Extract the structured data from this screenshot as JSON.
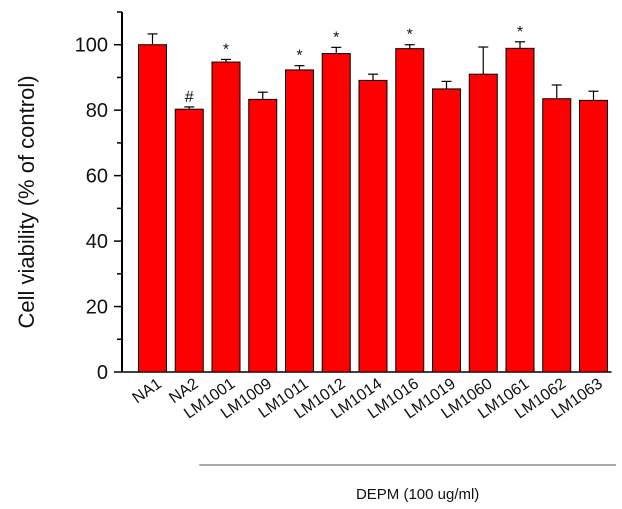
{
  "chart_data": {
    "type": "bar",
    "title": "",
    "ylabel": "Cell viability (% of control)",
    "xlabel": "DEPM (100 ug/ml)",
    "ylim": [
      0,
      110
    ],
    "yticks": [
      0,
      20,
      40,
      60,
      80,
      100
    ],
    "categories": [
      "NA1",
      "NA2",
      "LM1001",
      "LM1009",
      "LM1011",
      "LM1012",
      "LM1014",
      "LM1016",
      "LM1019",
      "LM1060",
      "LM1061",
      "LM1062",
      "LM1063"
    ],
    "values": [
      100,
      80.3,
      94.7,
      83.3,
      92.3,
      97.3,
      89.1,
      98.8,
      86.5,
      91.0,
      98.9,
      83.5,
      83.0
    ],
    "errors": [
      3.3,
      0.7,
      0.8,
      2.2,
      1.3,
      1.9,
      1.9,
      1.2,
      2.3,
      8.3,
      2.0,
      4.2,
      2.8
    ],
    "significance": [
      "",
      "#",
      "*",
      "",
      "*",
      "*",
      "",
      "*",
      "",
      "",
      "*",
      "",
      ""
    ],
    "bracket_start_index": 1,
    "bar_color": "#ff0000",
    "grid": false,
    "legend": "none"
  }
}
